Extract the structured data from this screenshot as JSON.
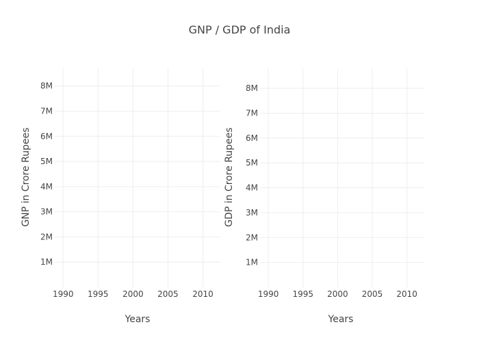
{
  "figure_title": "GNP / GDP of India",
  "chart_data": [
    {
      "type": "line",
      "title": "GNP / GDP of India",
      "xlabel": "Years",
      "ylabel": "GNP in Crore Rupees",
      "x_ticks": [
        1990,
        1995,
        2000,
        2005,
        2010
      ],
      "x_tick_labels": [
        "1990",
        "1995",
        "2000",
        "2005",
        "2010"
      ],
      "y_ticks": [
        1000000,
        2000000,
        3000000,
        4000000,
        5000000,
        6000000,
        7000000,
        8000000
      ],
      "y_tick_labels": [
        "1M",
        "2M",
        "3M",
        "4M",
        "5M",
        "6M",
        "7M",
        "8M"
      ],
      "xlim": [
        1988.8,
        2012.5
      ],
      "ylim": [
        0,
        8700000
      ],
      "grid": true,
      "series": []
    },
    {
      "type": "line",
      "title": "GNP / GDP of India",
      "xlabel": "Years",
      "ylabel": "GDP in Crore Rupees",
      "x_ticks": [
        1990,
        1995,
        2000,
        2005,
        2010
      ],
      "x_tick_labels": [
        "1990",
        "1995",
        "2000",
        "2005",
        "2010"
      ],
      "y_ticks": [
        1000000,
        2000000,
        3000000,
        4000000,
        5000000,
        6000000,
        7000000,
        8000000
      ],
      "y_tick_labels": [
        "1M",
        "2M",
        "3M",
        "4M",
        "5M",
        "6M",
        "7M",
        "8M"
      ],
      "xlim": [
        1988.8,
        2012.5
      ],
      "ylim": [
        0,
        8800000
      ],
      "grid": true,
      "series": []
    }
  ]
}
